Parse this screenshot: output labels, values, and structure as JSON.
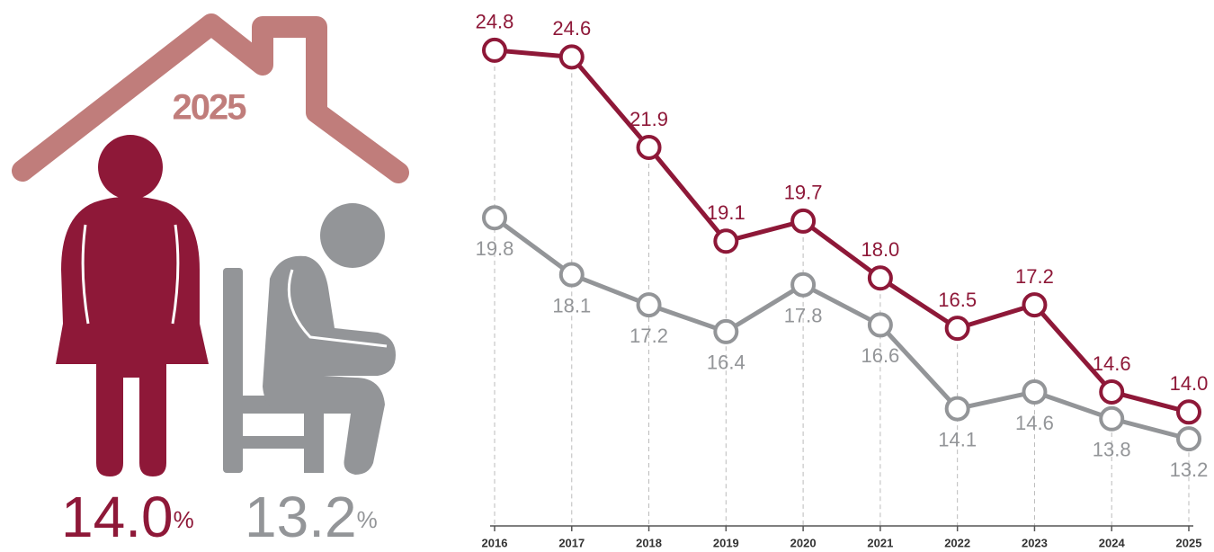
{
  "chart_data": {
    "type": "line",
    "categories": [
      "2016",
      "2017",
      "2018",
      "2019",
      "2020",
      "2021",
      "2022",
      "2023",
      "2024",
      "2025"
    ],
    "series": [
      {
        "color": "#8e1838",
        "values": [
          24.8,
          24.6,
          21.9,
          19.1,
          19.7,
          18.0,
          16.5,
          17.2,
          14.6,
          14.0
        ],
        "value_labels": [
          "24.8",
          "24.6",
          "21.9",
          "19.1",
          "19.7",
          "18.0",
          "16.5",
          "17.2",
          "14.6",
          "14.0"
        ]
      },
      {
        "color": "#939598",
        "values": [
          19.8,
          18.1,
          17.2,
          16.4,
          17.8,
          16.6,
          14.1,
          14.6,
          13.8,
          13.2
        ],
        "value_labels": [
          "19.8",
          "18.1",
          "17.2",
          "16.4",
          "17.8",
          "16.6",
          "14.1",
          "14.6",
          "13.8",
          "13.2"
        ]
      }
    ],
    "ylim": [
      10.6,
      26.3
    ],
    "unit": "%"
  }
}
